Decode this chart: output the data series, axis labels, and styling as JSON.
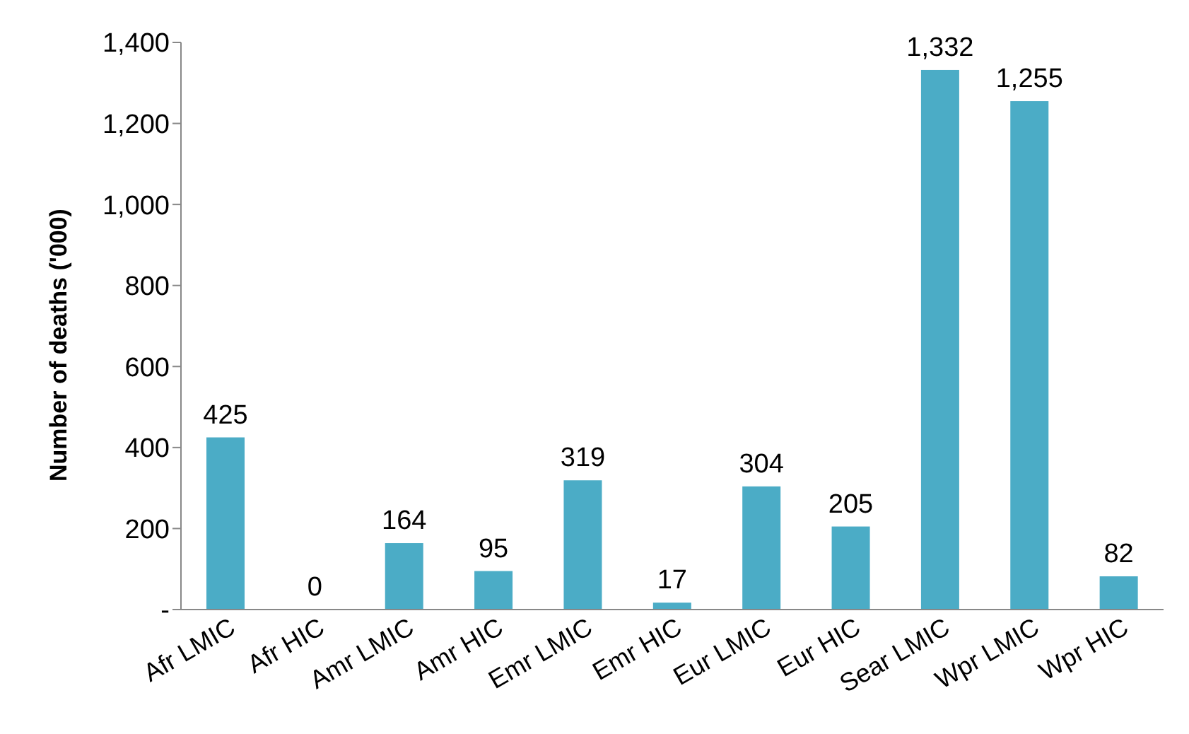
{
  "chart_data": {
    "type": "bar",
    "ylabel": "Number of deaths ('000)",
    "categories": [
      "Afr LMIC",
      "Afr HIC",
      "Amr LMIC",
      "Amr HIC",
      "Emr LMIC",
      "Emr HIC",
      "Eur LMIC",
      "Eur HIC",
      "Sear LMIC",
      "Wpr LMIC",
      "Wpr HIC"
    ],
    "values": [
      425,
      0,
      164,
      95,
      319,
      17,
      304,
      205,
      1332,
      1255,
      82
    ],
    "value_labels": [
      "425",
      "0",
      "164",
      "95",
      "319",
      "17",
      "304",
      "205",
      "1,332",
      "1,255",
      "82"
    ],
    "color": "#4bacc6",
    "ylim": [
      0,
      1400
    ],
    "yticks": [
      {
        "value": 0,
        "label": "-"
      },
      {
        "value": 200,
        "label": "200"
      },
      {
        "value": 400,
        "label": "400"
      },
      {
        "value": 600,
        "label": "600"
      },
      {
        "value": 800,
        "label": "800"
      },
      {
        "value": 1000,
        "label": "1,000"
      },
      {
        "value": 1200,
        "label": "1,200"
      },
      {
        "value": 1400,
        "label": "1,400"
      }
    ],
    "grid": false
  }
}
